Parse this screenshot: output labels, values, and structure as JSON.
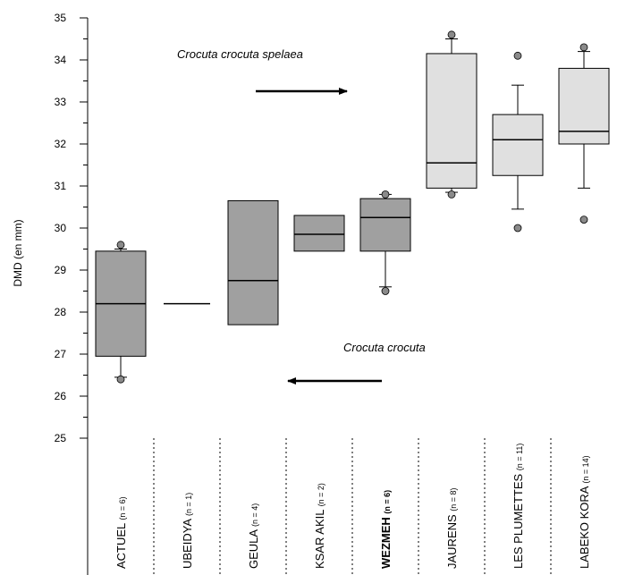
{
  "chart_data": {
    "type": "box",
    "ylabel": "DMD (en mm)",
    "ylim": [
      25,
      35
    ],
    "yticks": [
      25,
      26,
      27,
      28,
      29,
      30,
      31,
      32,
      33,
      34,
      35
    ],
    "grid": false,
    "categories": [
      {
        "name": "ACTUEL",
        "n": "(n = 6)",
        "bold": false,
        "fill": "#a0a0a0",
        "q1": 26.95,
        "median": 28.2,
        "q3": 29.45,
        "whisker_low": 26.45,
        "whisker_high": 29.5,
        "outliers": [
          26.4,
          29.6
        ]
      },
      {
        "name": "UBEIDYA",
        "n": "(n = 1)",
        "bold": false,
        "fill": "none",
        "single": 28.2
      },
      {
        "name": "GEULA",
        "n": "(n = 4)",
        "bold": false,
        "fill": "#a0a0a0",
        "q1": 27.7,
        "median": 28.75,
        "q3": 30.65
      },
      {
        "name": "KSAR AKIL",
        "n": "(n = 2)",
        "bold": false,
        "fill": "#a0a0a0",
        "q1": 29.45,
        "median": 29.85,
        "q3": 30.3
      },
      {
        "name": "WEZMEH",
        "n": "(n = 6)",
        "bold": true,
        "fill": "#a0a0a0",
        "q1": 29.45,
        "median": 30.25,
        "q3": 30.7,
        "whisker_low": 28.6,
        "whisker_high": 30.8,
        "outliers": [
          28.5,
          30.8
        ]
      },
      {
        "name": "JAURENS",
        "n": "(n = 8)",
        "bold": false,
        "fill": "#e0e0e0",
        "q1": 30.95,
        "median": 31.55,
        "q3": 34.15,
        "whisker_low": 30.85,
        "whisker_high": 34.5,
        "outliers": [
          30.8,
          34.6
        ]
      },
      {
        "name": "LES PLUMETTES",
        "n": "(n = 11)",
        "bold": false,
        "fill": "#e0e0e0",
        "q1": 31.25,
        "median": 32.1,
        "q3": 32.7,
        "whisker_low": 30.45,
        "whisker_high": 33.4,
        "outliers": [
          30.0,
          34.1
        ]
      },
      {
        "name": "LABEKO KORA",
        "n": "(n = 14)",
        "bold": false,
        "fill": "#e0e0e0",
        "q1": 32.0,
        "median": 32.3,
        "q3": 33.8,
        "whisker_low": 30.95,
        "whisker_high": 34.2,
        "outliers": [
          30.2,
          34.3
        ]
      }
    ],
    "annotations": [
      {
        "text": "Crocuta crocuta spelaea",
        "arrow": "right"
      },
      {
        "text": "Crocuta crocuta",
        "arrow": "left"
      }
    ]
  }
}
